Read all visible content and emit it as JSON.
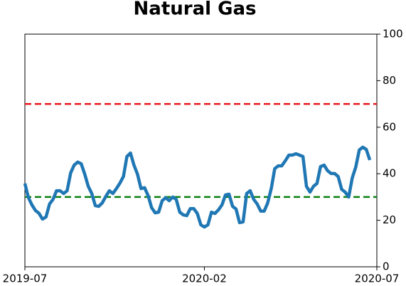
{
  "chart_data": {
    "type": "line",
    "title": "Natural Gas",
    "series": [
      {
        "color": "#1f77b4",
        "values": [
          35.8,
          29.7,
          26.6,
          24.2,
          23,
          20.5,
          21.4,
          27,
          29,
          32.7,
          32.7,
          31.5,
          32.7,
          40.4,
          43.7,
          45,
          44.3,
          39.8,
          34.6,
          31.5,
          26.3,
          26,
          27.5,
          30.3,
          32.7,
          31.5,
          33.6,
          36,
          38.8,
          47.4,
          48.9,
          43.7,
          39.8,
          33.6,
          34,
          30.6,
          25.4,
          23.2,
          23.5,
          28.4,
          29.7,
          28.4,
          30,
          29,
          23.5,
          22.3,
          22,
          25,
          25,
          22.9,
          18,
          17.1,
          18,
          23.5,
          22.9,
          24.5,
          26.6,
          30.9,
          31.2,
          26,
          24.8,
          19,
          19.3,
          31.5,
          32.7,
          29,
          27,
          23.9,
          23.9,
          27.5,
          33.6,
          42.2,
          43.4,
          43.4,
          45.6,
          48,
          48,
          48.6,
          48,
          47.4,
          34.6,
          32.1,
          34.6,
          35.8,
          43.1,
          43.7,
          41.3,
          40.1,
          40.1,
          38.8,
          33.3,
          32.1,
          30,
          38.2,
          42.8,
          50.2,
          51.4,
          50.5,
          45.9
        ]
      }
    ],
    "xlim": [
      0,
      100
    ],
    "xticks": [
      {
        "value": 0,
        "label": "2019-07"
      },
      {
        "value": 51,
        "label": "2020-02"
      },
      {
        "value": 100,
        "label": "2020-07"
      }
    ],
    "ylim": [
      0,
      100
    ],
    "yticks": [
      0,
      20,
      40,
      60,
      80,
      100
    ],
    "hlines": [
      {
        "value": 70,
        "color": "#e8141c"
      },
      {
        "value": 30,
        "color": "#0a8012"
      }
    ]
  }
}
